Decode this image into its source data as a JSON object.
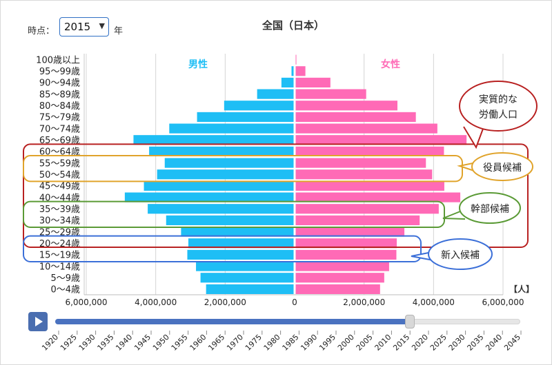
{
  "controls": {
    "period_label": "時点：",
    "year_unit": "年",
    "selected_year": "2015",
    "chevron_icon": "chevron-down-icon",
    "play_icon": "play-icon",
    "slider_years": [
      "1920",
      "1925",
      "1930",
      "1935",
      "1940",
      "1945",
      "1950",
      "1955",
      "1960",
      "1965",
      "1970",
      "1975",
      "1980",
      "1985",
      "1990",
      "1995",
      "2000",
      "2005",
      "2010",
      "2015",
      "2020",
      "2025",
      "2030",
      "2035",
      "2040",
      "2045"
    ],
    "slider_position": 0.76
  },
  "colors": {
    "male": "#1ebef5",
    "female": "#ff6ab6",
    "executive": "#e0a32a",
    "manager": "#5a9a35",
    "new_hire": "#3b6fd8",
    "workforce": "#b82020",
    "play": "#4a6eb0",
    "slider_fill": "#4a72c0"
  },
  "chart_data": {
    "type": "bar",
    "title": "全国（日本）",
    "male_label": "男性",
    "female_label": "女性",
    "unit_label": "【人】",
    "xlim": [
      -6000000,
      6000000
    ],
    "x_ticks": [
      -6000000,
      -4000000,
      -2000000,
      0,
      2000000,
      4000000,
      6000000
    ],
    "x_tick_labels": [
      "6,000,000",
      "4,000,000",
      "2,000,000",
      "0",
      "2,000,000",
      "4,000,000",
      "6,000,000"
    ],
    "categories": [
      "100歳以上",
      "95〜99歳",
      "90〜94歳",
      "85〜89歳",
      "80〜84歳",
      "75〜79歳",
      "70〜74歳",
      "65〜69歳",
      "60〜64歳",
      "55〜59歳",
      "50〜54歳",
      "45〜49歳",
      "40〜44歳",
      "35〜39歳",
      "30〜34歳",
      "25〜29歳",
      "20〜24歳",
      "15〜19歳",
      "10〜14歳",
      "5〜9歳",
      "0〜4歳"
    ],
    "series": [
      {
        "name": "男性",
        "values": [
          10000,
          90000,
          380000,
          1080000,
          2030000,
          2810000,
          3610000,
          4640000,
          4190000,
          3740000,
          3960000,
          4340000,
          4890000,
          4230000,
          3700000,
          3270000,
          3060000,
          3090000,
          2840000,
          2710000,
          2550000
        ]
      },
      {
        "name": "女性",
        "values": [
          50000,
          310000,
          1030000,
          2060000,
          2960000,
          3490000,
          4110000,
          4950000,
          4300000,
          3780000,
          3960000,
          4310000,
          4770000,
          4150000,
          3600000,
          3160000,
          2940000,
          2930000,
          2720000,
          2580000,
          2460000
        ]
      }
    ],
    "annotations": [
      {
        "text_lines": [
          "実質的な",
          "労働人口"
        ],
        "color": "#b82020",
        "groups": [
          "60〜64歳",
          "15〜19歳"
        ]
      },
      {
        "text_lines": [
          "役員候補"
        ],
        "color": "#e0a32a",
        "groups": [
          "55〜59歳",
          "50〜54歳"
        ]
      },
      {
        "text_lines": [
          "幹部候補"
        ],
        "color": "#5a9a35",
        "groups": [
          "35〜39歳",
          "30〜34歳"
        ]
      },
      {
        "text_lines": [
          "新入候補"
        ],
        "color": "#3b6fd8",
        "groups": [
          "20〜24歳",
          "15〜19歳"
        ]
      }
    ]
  }
}
